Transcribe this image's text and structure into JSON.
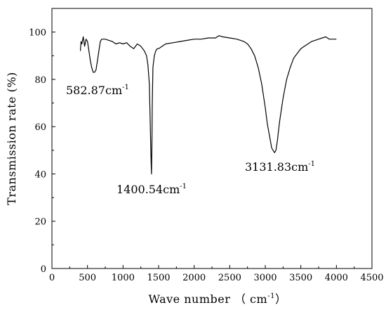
{
  "chart_data": {
    "type": "line",
    "title": "",
    "xlabel": "Wave number （ cm",
    "xlabel_sup": "-1",
    "xlabel_tail": "）",
    "ylabel": "Transmission rate (%)",
    "xlim": [
      0,
      4500
    ],
    "ylim": [
      0,
      110
    ],
    "x_ticks": [
      0,
      500,
      1000,
      1500,
      2000,
      2500,
      3000,
      3500,
      4000,
      4500
    ],
    "y_ticks": [
      0,
      20,
      40,
      60,
      80,
      100
    ],
    "x_tick_labels": [
      "0",
      "500",
      "1000",
      "1500",
      "2000",
      "2500",
      "3000",
      "3500",
      "4000",
      "4500"
    ],
    "y_tick_labels": [
      "0",
      "20",
      "40",
      "60",
      "80",
      "100"
    ],
    "grid": false,
    "series_color": "#000000",
    "series": [
      {
        "x": [
          400,
          410,
          420,
          440,
          460,
          480,
          500,
          520,
          540,
          560,
          580,
          600,
          620,
          640,
          660,
          680,
          700,
          750,
          800,
          850,
          900,
          950,
          1000,
          1050,
          1100,
          1150,
          1200,
          1250,
          1300,
          1330,
          1350,
          1370,
          1380,
          1390,
          1395,
          1400,
          1405,
          1410,
          1420,
          1440,
          1460,
          1480,
          1500,
          1550,
          1600,
          1700,
          1800,
          1900,
          2000,
          2100,
          2200,
          2300,
          2350,
          2400,
          2500,
          2600,
          2700,
          2750,
          2800,
          2850,
          2900,
          2950,
          3000,
          3030,
          3060,
          3090,
          3110,
          3130,
          3150,
          3170,
          3200,
          3250,
          3300,
          3350,
          3400,
          3450,
          3500,
          3550,
          3600,
          3650,
          3700,
          3750,
          3800,
          3850,
          3900,
          3950,
          4000
        ],
        "y": [
          92,
          96,
          95,
          98,
          94,
          97,
          96,
          92,
          88,
          85,
          83,
          83,
          84,
          88,
          92,
          96,
          97,
          97,
          96.5,
          96,
          95,
          95.5,
          95,
          95.5,
          94,
          93,
          95,
          94,
          92,
          90,
          86,
          78,
          65,
          50,
          44,
          40,
          50,
          68,
          85,
          90,
          92,
          93,
          93,
          94,
          95,
          95.5,
          96,
          96.5,
          97,
          97,
          97.5,
          97.5,
          98.5,
          98,
          97.5,
          97,
          96,
          95,
          93,
          90,
          85,
          78,
          68,
          61,
          56,
          51,
          50,
          49,
          50,
          54,
          62,
          72,
          80,
          85,
          89,
          91,
          93,
          94,
          95,
          96,
          96.5,
          97,
          97.5,
          98,
          97,
          97,
          97
        ]
      }
    ],
    "annotations": [
      {
        "text": "582.87cm",
        "sup": "-1"
      },
      {
        "text": "1400.54cm",
        "sup": "-1"
      },
      {
        "text": "3131.83cm",
        "sup": "-1"
      }
    ]
  }
}
